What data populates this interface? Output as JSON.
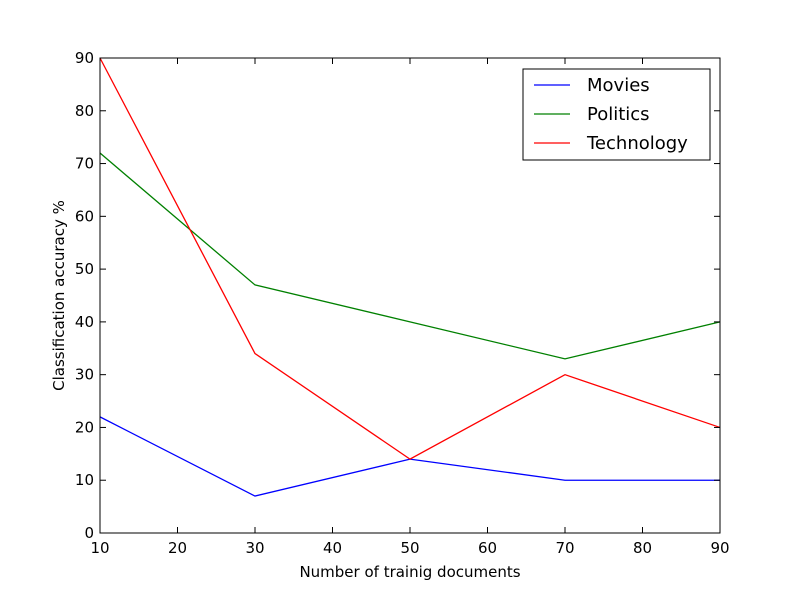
{
  "chart_data": {
    "type": "line",
    "xlabel": "Number of trainig documents",
    "ylabel": "Classification accuracy %",
    "xlim": [
      10,
      90
    ],
    "ylim": [
      0,
      90
    ],
    "xticks": [
      10,
      20,
      30,
      40,
      50,
      60,
      70,
      80,
      90
    ],
    "yticks": [
      0,
      10,
      20,
      30,
      40,
      50,
      60,
      70,
      80,
      90
    ],
    "x": [
      10,
      30,
      50,
      70,
      90
    ],
    "series": [
      {
        "name": "Movies",
        "color": "#0000ff",
        "values": [
          22,
          7,
          14,
          10,
          10
        ]
      },
      {
        "name": "Politics",
        "color": "#008000",
        "values": [
          72,
          47,
          40,
          33,
          40
        ]
      },
      {
        "name": "Technology",
        "color": "#ff0000",
        "values": [
          90,
          34,
          14,
          30,
          20
        ]
      }
    ],
    "legend_position": "top-right",
    "grid": false
  }
}
